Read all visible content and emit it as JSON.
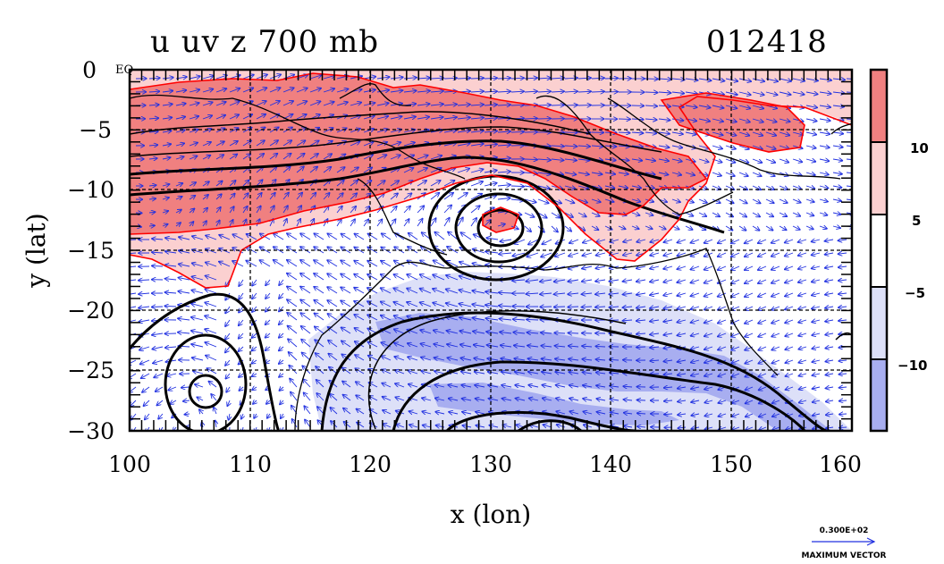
{
  "title": {
    "left": "u uv z 700 mb",
    "right": "012418"
  },
  "axes": {
    "xlabel": "x (lon)",
    "ylabel": "y (lat)",
    "xticks": [
      "100",
      "110",
      "120",
      "130",
      "140",
      "150",
      "160"
    ],
    "yticks": [
      "0",
      "−5",
      "−10",
      "−15",
      "−20",
      "−25",
      "−30"
    ],
    "equator_label": "EQ"
  },
  "map": {
    "lon_range": [
      100,
      160
    ],
    "lat_range": [
      -30,
      0
    ],
    "grid_lon": [
      110,
      120,
      130,
      140,
      150
    ],
    "grid_lat": [
      -5,
      -10,
      -15,
      -20,
      -25
    ],
    "colors": {
      "strong_pos": "#f08080",
      "weak_pos": "#fbd0d0",
      "weak_neg": "#dde0f8",
      "strong_neg": "#a8aef0",
      "vector": "#2030e0",
      "contour_pos": "#ff0000",
      "contour": "#000000"
    }
  },
  "colorbar": {
    "labels": [
      "10",
      "5",
      "−5",
      "−10"
    ],
    "colors": [
      "#f08080",
      "#fbd0d0",
      "#ffffff",
      "#dde0f8",
      "#a8aef0"
    ]
  },
  "vector_key": {
    "value": "0.300E+02",
    "label": "MAXIMUM VECTOR"
  }
}
